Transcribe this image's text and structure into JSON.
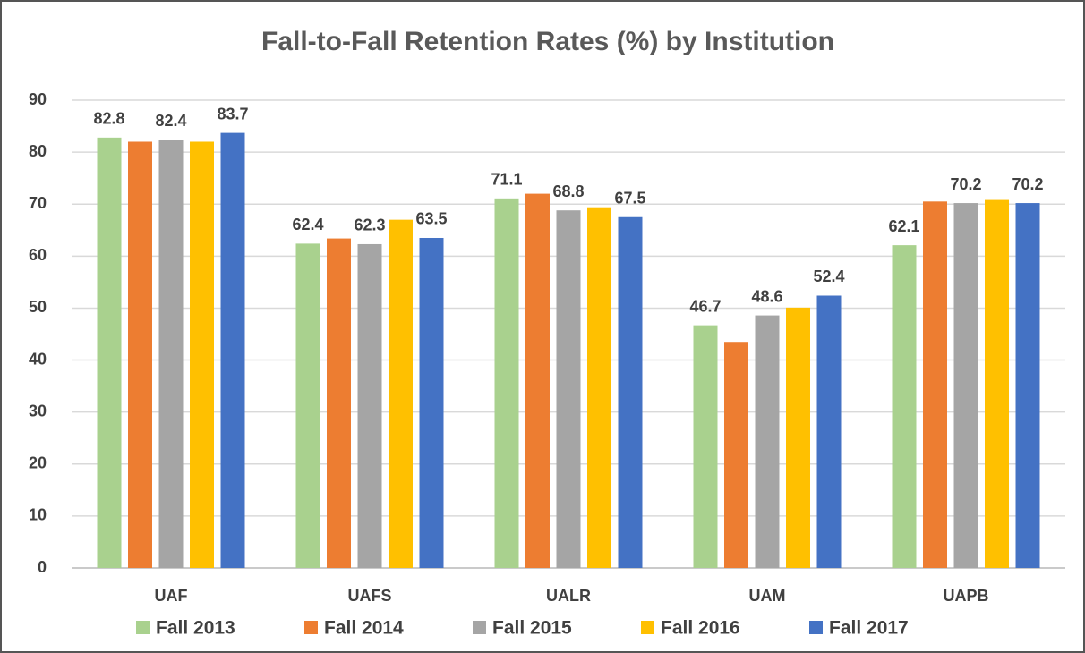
{
  "chart_data": {
    "type": "bar",
    "title": "Fall-to-Fall Retention Rates (%) by Institution",
    "categories": [
      "UAF",
      "UAFS",
      "UALR",
      "UAM",
      "UAPB"
    ],
    "series": [
      {
        "name": "Fall 2013",
        "color": "#a9d18e",
        "data_labels": true,
        "values": [
          82.8,
          62.4,
          71.1,
          46.7,
          62.1
        ]
      },
      {
        "name": "Fall 2014",
        "color": "#ed7d31",
        "data_labels": false,
        "values": [
          82.0,
          63.4,
          72.0,
          43.5,
          70.5
        ]
      },
      {
        "name": "Fall 2015",
        "color": "#a5a5a5",
        "data_labels": true,
        "values": [
          82.4,
          62.3,
          68.8,
          48.6,
          70.2
        ]
      },
      {
        "name": "Fall 2016",
        "color": "#ffc000",
        "data_labels": false,
        "values": [
          82.0,
          67.0,
          69.4,
          50.1,
          70.8
        ]
      },
      {
        "name": "Fall 2017",
        "color": "#4472c4",
        "data_labels": true,
        "values": [
          83.7,
          63.5,
          67.5,
          52.4,
          70.2
        ]
      }
    ],
    "ylim": [
      0,
      90
    ],
    "yticks": [
      0,
      10,
      20,
      30,
      40,
      50,
      60,
      70,
      80,
      90
    ],
    "grid": true,
    "legend": "bottom"
  }
}
